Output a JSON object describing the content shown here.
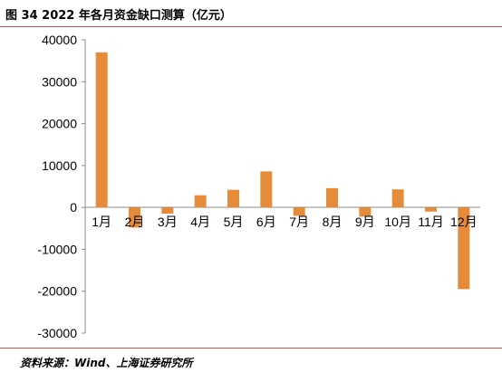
{
  "figure": {
    "title": "图 34  2022 年各月资金缺口测算（亿元）",
    "source": "资料来源：Wind、上海证券研究所"
  },
  "colors": {
    "bar": "#E58B39",
    "rule": "#C0504D"
  },
  "chart_data": {
    "type": "bar",
    "title": "",
    "xlabel": "",
    "ylabel": "",
    "categories": [
      "1月",
      "2月",
      "3月",
      "4月",
      "5月",
      "6月",
      "7月",
      "8月",
      "9月",
      "10月",
      "11月",
      "12月"
    ],
    "values": [
      37000,
      -4800,
      -1500,
      2900,
      4200,
      8600,
      -2000,
      4600,
      -2200,
      4300,
      -1000,
      -19500
    ],
    "ylim": [
      -30000,
      40000
    ],
    "yticks": [
      -30000,
      -20000,
      -10000,
      0,
      10000,
      20000,
      30000,
      40000
    ],
    "grid": false,
    "legend": "none"
  }
}
